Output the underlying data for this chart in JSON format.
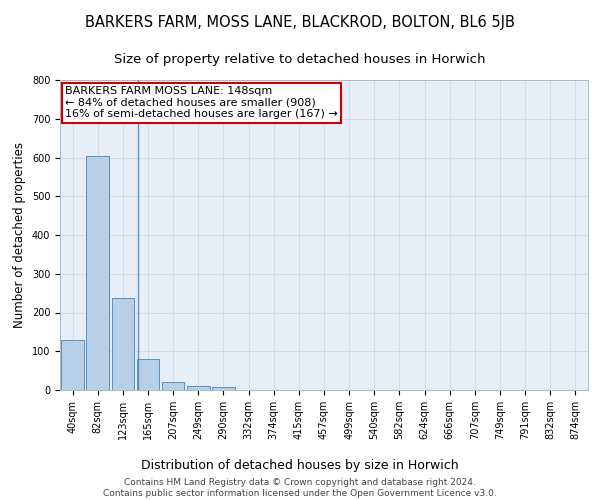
{
  "title": "BARKERS FARM, MOSS LANE, BLACKROD, BOLTON, BL6 5JB",
  "subtitle": "Size of property relative to detached houses in Horwich",
  "xlabel": "Distribution of detached houses by size in Horwich",
  "ylabel": "Number of detached properties",
  "footer_line1": "Contains HM Land Registry data © Crown copyright and database right 2024.",
  "footer_line2": "Contains public sector information licensed under the Open Government Licence v3.0.",
  "categories": [
    "40sqm",
    "82sqm",
    "123sqm",
    "165sqm",
    "207sqm",
    "249sqm",
    "290sqm",
    "332sqm",
    "374sqm",
    "415sqm",
    "457sqm",
    "499sqm",
    "540sqm",
    "582sqm",
    "624sqm",
    "666sqm",
    "707sqm",
    "749sqm",
    "791sqm",
    "832sqm",
    "874sqm"
  ],
  "values": [
    128,
    605,
    237,
    80,
    20,
    11,
    7,
    0,
    0,
    0,
    0,
    0,
    0,
    0,
    0,
    0,
    0,
    0,
    0,
    0,
    0
  ],
  "bar_color": "#b8cfe8",
  "bar_edge_color": "#5a8fc0",
  "grid_color": "#d0d8e8",
  "bg_color": "#e8eef8",
  "annotation_box_color": "#cc0000",
  "annotation_line1": "BARKERS FARM MOSS LANE: 148sqm",
  "annotation_line2": "← 84% of detached houses are smaller (908)",
  "annotation_line3": "16% of semi-detached houses are larger (167) →",
  "prop_line_index": 2.3,
  "ylim": [
    0,
    800
  ],
  "yticks": [
    0,
    100,
    200,
    300,
    400,
    500,
    600,
    700,
    800
  ],
  "title_fontsize": 10.5,
  "subtitle_fontsize": 9.5,
  "annotation_fontsize": 8,
  "tick_fontsize": 7,
  "xlabel_fontsize": 9,
  "ylabel_fontsize": 8.5,
  "footer_fontsize": 6.5
}
